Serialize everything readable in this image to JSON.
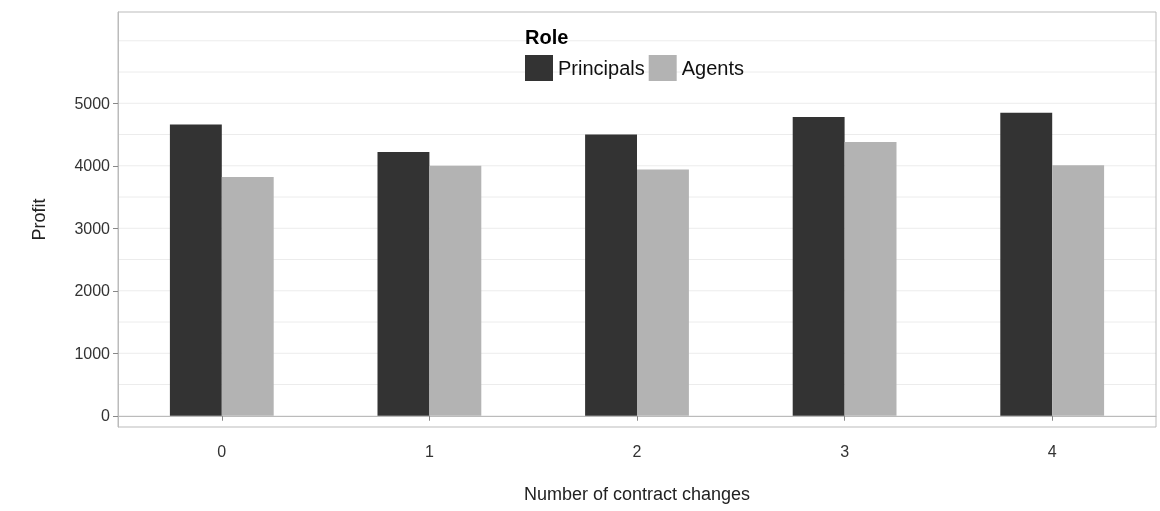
{
  "chart_data": {
    "type": "bar",
    "xlabel": "Number of contract changes",
    "ylabel": "Profit",
    "legend_title": "Role",
    "categories": [
      "0",
      "1",
      "2",
      "3",
      "4"
    ],
    "series": [
      {
        "name": "Principals",
        "color": "#333333",
        "values": [
          4660,
          4220,
          4500,
          4780,
          4850
        ]
      },
      {
        "name": "Agents",
        "color": "#b3b3b3",
        "values": [
          3820,
          4000,
          3940,
          4380,
          4010
        ]
      }
    ],
    "ylim": [
      -180,
      6460
    ],
    "yticks": [
      0,
      1000,
      2000,
      3000,
      4000,
      5000
    ],
    "grid": "y",
    "legend": "top"
  }
}
